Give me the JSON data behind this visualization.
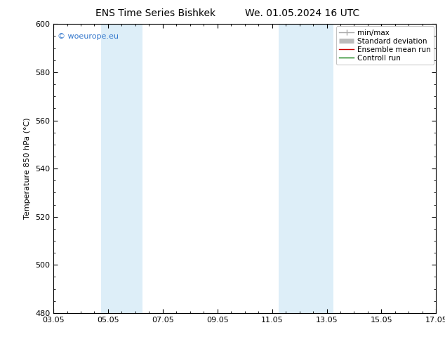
{
  "title_left": "ENS Time Series Bishkek",
  "title_right": "We. 01.05.2024 16 UTC",
  "ylabel": "Temperature 850 hPa (°C)",
  "ylim": [
    480,
    600
  ],
  "yticks": [
    480,
    500,
    520,
    540,
    560,
    580,
    600
  ],
  "xtick_labels": [
    "03.05",
    "05.05",
    "07.05",
    "09.05",
    "11.05",
    "13.05",
    "15.05",
    "17.05"
  ],
  "xtick_positions": [
    0,
    2,
    4,
    6,
    8,
    10,
    12,
    14
  ],
  "shade_bands": [
    {
      "x_start": 1.75,
      "x_end": 3.25,
      "color": "#ddeef8"
    },
    {
      "x_start": 8.25,
      "x_end": 10.25,
      "color": "#ddeef8"
    }
  ],
  "watermark": "© woeurope.eu",
  "watermark_color": "#3377cc",
  "legend_items": [
    {
      "label": "min/max",
      "color": "#aaaaaa",
      "lw": 1.0
    },
    {
      "label": "Standard deviation",
      "color": "#bbbbbb",
      "lw": 5.0
    },
    {
      "label": "Ensemble mean run",
      "color": "#cc0000",
      "lw": 1.0
    },
    {
      "label": "Controll run",
      "color": "#007700",
      "lw": 1.0
    }
  ],
  "bg_color": "#ffffff",
  "plot_bg_color": "#ffffff",
  "title_fontsize": 10,
  "label_fontsize": 8,
  "tick_fontsize": 8,
  "legend_fontsize": 7.5
}
